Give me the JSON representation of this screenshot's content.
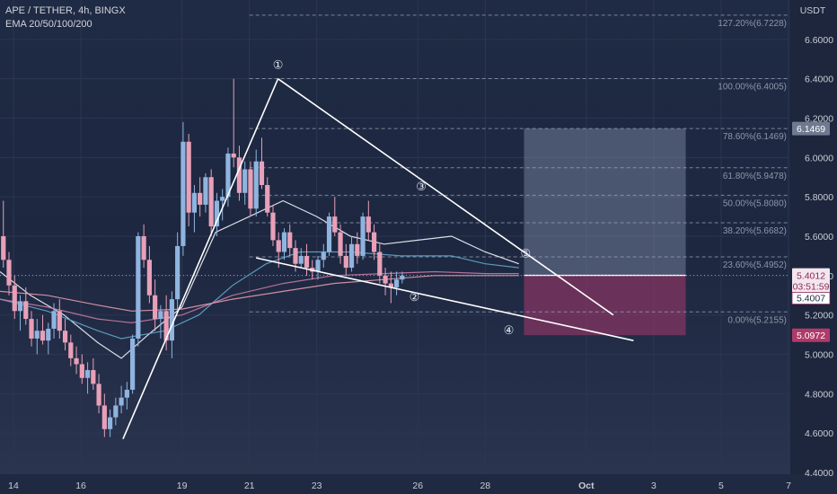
{
  "chart_data": {
    "type": "candlestick",
    "symbol_line": "APE / TETHER, 4h, BINGX",
    "indicator_line": "EMA 20/50/100/200",
    "currency_label": "USDT",
    "ylim": [
      4.4,
      6.8
    ],
    "y_ticks": [
      "6.6000",
      "6.4000",
      "6.2000",
      "6.0000",
      "5.8000",
      "5.6000",
      "5.4000",
      "5.2000",
      "5.0000",
      "4.8000",
      "4.6000",
      "4.4000"
    ],
    "x_ticks": [
      {
        "label": "14",
        "t": 14
      },
      {
        "label": "16",
        "t": 16
      },
      {
        "label": "19",
        "t": 19
      },
      {
        "label": "21",
        "t": 21
      },
      {
        "label": "23",
        "t": 23
      },
      {
        "label": "26",
        "t": 26
      },
      {
        "label": "28",
        "t": 28
      },
      {
        "label": "Oct",
        "t": 31
      },
      {
        "label": "3",
        "t": 33
      },
      {
        "label": "5",
        "t": 35
      },
      {
        "label": "7",
        "t": 37
      }
    ],
    "x_range": [
      13.6,
      37
    ],
    "bar_step": 0.1667,
    "candles": [
      [
        5.6,
        5.78,
        5.44,
        5.48
      ],
      [
        5.48,
        5.52,
        5.3,
        5.35
      ],
      [
        5.35,
        5.4,
        5.18,
        5.22
      ],
      [
        5.22,
        5.3,
        5.12,
        5.27
      ],
      [
        5.27,
        5.34,
        5.15,
        5.18
      ],
      [
        5.18,
        5.22,
        5.04,
        5.08
      ],
      [
        5.08,
        5.18,
        5.0,
        5.12
      ],
      [
        5.12,
        5.2,
        5.05,
        5.07
      ],
      [
        5.07,
        5.16,
        5.0,
        5.13
      ],
      [
        5.13,
        5.26,
        5.08,
        5.22
      ],
      [
        5.22,
        5.28,
        5.08,
        5.12
      ],
      [
        5.12,
        5.18,
        5.02,
        5.06
      ],
      [
        5.06,
        5.1,
        4.94,
        4.98
      ],
      [
        4.98,
        5.04,
        4.9,
        4.95
      ],
      [
        4.95,
        5.0,
        4.85,
        4.88
      ],
      [
        4.88,
        4.96,
        4.8,
        4.92
      ],
      [
        4.92,
        4.98,
        4.82,
        4.85
      ],
      [
        4.85,
        4.9,
        4.7,
        4.74
      ],
      [
        4.74,
        4.8,
        4.58,
        4.62
      ],
      [
        4.62,
        4.72,
        4.58,
        4.68
      ],
      [
        4.68,
        4.78,
        4.64,
        4.74
      ],
      [
        4.74,
        4.84,
        4.7,
        4.78
      ],
      [
        4.78,
        4.86,
        4.72,
        4.82
      ],
      [
        4.82,
        5.1,
        4.8,
        5.08
      ],
      [
        5.08,
        5.62,
        5.04,
        5.6
      ],
      [
        5.6,
        5.66,
        5.44,
        5.48
      ],
      [
        5.48,
        5.55,
        5.26,
        5.3
      ],
      [
        5.3,
        5.38,
        5.12,
        5.18
      ],
      [
        5.18,
        5.25,
        5.08,
        5.22
      ],
      [
        5.22,
        5.3,
        5.02,
        5.07
      ],
      [
        5.07,
        5.32,
        4.98,
        5.28
      ],
      [
        5.28,
        5.62,
        5.22,
        5.55
      ],
      [
        5.55,
        6.18,
        5.5,
        6.08
      ],
      [
        6.08,
        6.12,
        5.65,
        5.72
      ],
      [
        5.72,
        5.86,
        5.62,
        5.82
      ],
      [
        5.82,
        5.9,
        5.7,
        5.76
      ],
      [
        5.76,
        5.92,
        5.72,
        5.9
      ],
      [
        5.9,
        5.94,
        5.6,
        5.65
      ],
      [
        5.65,
        5.82,
        5.6,
        5.78
      ],
      [
        5.78,
        5.84,
        5.68,
        5.8
      ],
      [
        5.8,
        6.05,
        5.75,
        6.02
      ],
      [
        6.02,
        6.4,
        5.95,
        6.0
      ],
      [
        6.0,
        6.06,
        5.78,
        5.82
      ],
      [
        5.82,
        5.98,
        5.76,
        5.94
      ],
      [
        5.94,
        5.98,
        5.7,
        5.74
      ],
      [
        5.74,
        6.04,
        5.7,
        5.98
      ],
      [
        5.98,
        6.1,
        5.84,
        5.86
      ],
      [
        5.86,
        5.9,
        5.7,
        5.72
      ],
      [
        5.72,
        5.76,
        5.55,
        5.58
      ],
      [
        5.58,
        5.62,
        5.44,
        5.52
      ],
      [
        5.52,
        5.64,
        5.48,
        5.62
      ],
      [
        5.62,
        5.66,
        5.5,
        5.54
      ],
      [
        5.54,
        5.58,
        5.42,
        5.46
      ],
      [
        5.46,
        5.54,
        5.44,
        5.5
      ],
      [
        5.5,
        5.56,
        5.4,
        5.44
      ],
      [
        5.44,
        5.48,
        5.38,
        5.42
      ],
      [
        5.42,
        5.5,
        5.38,
        5.48
      ],
      [
        5.48,
        5.56,
        5.44,
        5.52
      ],
      [
        5.52,
        5.72,
        5.5,
        5.7
      ],
      [
        5.7,
        5.8,
        5.6,
        5.62
      ],
      [
        5.62,
        5.66,
        5.46,
        5.5
      ],
      [
        5.5,
        5.56,
        5.4,
        5.44
      ],
      [
        5.44,
        5.6,
        5.42,
        5.56
      ],
      [
        5.56,
        5.62,
        5.46,
        5.5
      ],
      [
        5.5,
        5.72,
        5.48,
        5.7
      ],
      [
        5.7,
        5.78,
        5.58,
        5.62
      ],
      [
        5.62,
        5.66,
        5.48,
        5.52
      ],
      [
        5.52,
        5.56,
        5.36,
        5.4
      ],
      [
        5.4,
        5.44,
        5.3,
        5.36
      ],
      [
        5.36,
        5.42,
        5.26,
        5.34
      ],
      [
        5.34,
        5.42,
        5.3,
        5.38
      ],
      [
        5.38,
        5.42,
        5.36,
        5.4
      ]
    ],
    "ema": [
      {
        "name": "EMA 20",
        "color": "#f1f3f9",
        "values": [
          [
            13.6,
            5.42
          ],
          [
            14.5,
            5.3
          ],
          [
            15.5,
            5.2
          ],
          [
            16.5,
            5.06
          ],
          [
            17.2,
            4.98
          ],
          [
            18.0,
            5.1
          ],
          [
            19.0,
            5.24
          ],
          [
            20.0,
            5.62
          ],
          [
            21.0,
            5.7
          ],
          [
            22.0,
            5.78
          ],
          [
            23.0,
            5.7
          ],
          [
            24.0,
            5.6
          ],
          [
            25.0,
            5.56
          ],
          [
            26.0,
            5.58
          ],
          [
            27.0,
            5.6
          ],
          [
            28.0,
            5.52
          ],
          [
            29.0,
            5.46
          ]
        ]
      },
      {
        "name": "EMA 50",
        "color": "#5fa6c8",
        "values": [
          [
            13.6,
            5.28
          ],
          [
            15.0,
            5.22
          ],
          [
            16.5,
            5.12
          ],
          [
            17.2,
            5.08
          ],
          [
            18.5,
            5.12
          ],
          [
            19.5,
            5.2
          ],
          [
            20.5,
            5.35
          ],
          [
            21.5,
            5.46
          ],
          [
            22.5,
            5.52
          ],
          [
            24.0,
            5.52
          ],
          [
            25.5,
            5.5
          ],
          [
            27.0,
            5.5
          ],
          [
            28.0,
            5.46
          ],
          [
            29.0,
            5.44
          ]
        ]
      },
      {
        "name": "EMA 100",
        "color": "#c57aa3",
        "values": [
          [
            13.6,
            5.28
          ],
          [
            15.0,
            5.24
          ],
          [
            16.5,
            5.18
          ],
          [
            17.5,
            5.16
          ],
          [
            19.0,
            5.2
          ],
          [
            20.5,
            5.3
          ],
          [
            22.0,
            5.36
          ],
          [
            23.5,
            5.4
          ],
          [
            25.0,
            5.41
          ],
          [
            26.5,
            5.42
          ],
          [
            28.0,
            5.41
          ],
          [
            29.0,
            5.41
          ]
        ]
      },
      {
        "name": "EMA 200",
        "color": "#e39aad",
        "values": [
          [
            13.6,
            5.32
          ],
          [
            15.0,
            5.3
          ],
          [
            16.5,
            5.25
          ],
          [
            17.5,
            5.22
          ],
          [
            19.0,
            5.23
          ],
          [
            20.5,
            5.28
          ],
          [
            22.0,
            5.32
          ],
          [
            23.5,
            5.36
          ],
          [
            25.0,
            5.38
          ],
          [
            26.5,
            5.4
          ],
          [
            28.0,
            5.4
          ],
          [
            29.0,
            5.4
          ]
        ]
      }
    ],
    "pattern_lines": [
      [
        [
          17.25,
          4.57
        ],
        [
          21.85,
          6.4
        ]
      ],
      [
        [
          21.85,
          6.4
        ],
        [
          31.8,
          5.2
        ]
      ],
      [
        [
          21.2,
          5.49
        ],
        [
          32.4,
          5.07
        ]
      ]
    ],
    "wave_labels": [
      {
        "label": "①",
        "t": 21.85,
        "v": 6.47
      },
      {
        "label": "②",
        "t": 25.9,
        "v": 5.29
      },
      {
        "label": "③",
        "t": 26.1,
        "v": 5.85
      },
      {
        "label": "④",
        "t": 28.7,
        "v": 5.12
      },
      {
        "label": "⑤",
        "t": 29.2,
        "v": 5.51
      }
    ],
    "fib_start_t": 21.0,
    "fib_levels": [
      {
        "label": "127.20%(6.7228)",
        "v": 6.7228
      },
      {
        "label": "100.00%(6.4005)",
        "v": 6.4005
      },
      {
        "label": "78.60%(6.1469)",
        "v": 6.1469
      },
      {
        "label": "61.80%(5.9478)",
        "v": 5.9478
      },
      {
        "label": "50.00%(5.8080)",
        "v": 5.808
      },
      {
        "label": "38.20%(5.6682)",
        "v": 5.6682
      },
      {
        "label": "23.60%(5.4952)",
        "v": 5.4952
      },
      {
        "label": "0.00%(5.2155)",
        "v": 5.2155
      }
    ],
    "position": {
      "t_start": 29.15,
      "t_end": 33.95,
      "entry": 5.4012,
      "target": 6.1469,
      "stop": 5.0972
    },
    "price_tags": [
      {
        "text": "6.1469",
        "v": 6.1469,
        "bg": "#6f7a90",
        "fg": "#ffffff"
      },
      {
        "text": "5.0972",
        "v": 5.0972,
        "bg": "#b03a6a",
        "fg": "#ffffff"
      }
    ],
    "current_price": {
      "v": 5.4012,
      "value": "5.4012",
      "countdown": "03:51:59",
      "mark": "5.4007"
    }
  }
}
